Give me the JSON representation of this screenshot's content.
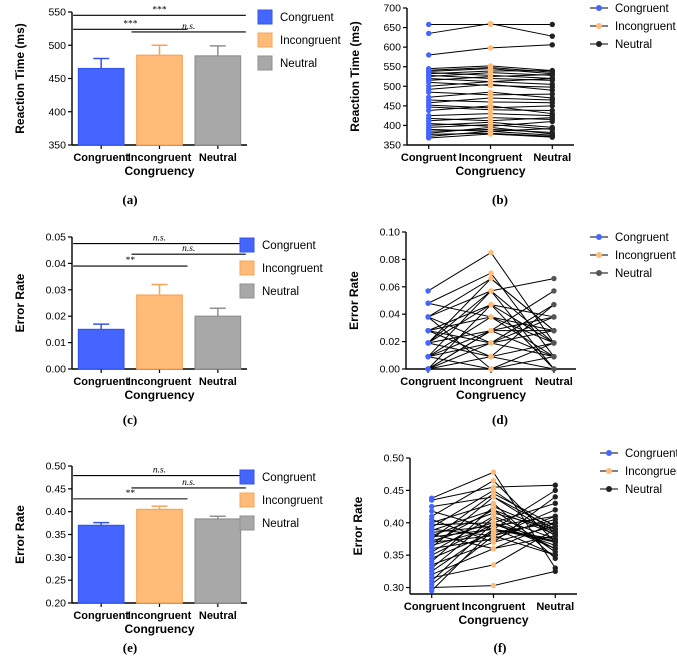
{
  "colors": {
    "congruent": "#4466ff",
    "incongruent": "#ffbb77",
    "neutral": "#a8a8a8",
    "congruent_edge": "#3355ee",
    "incongruent_edge": "#f5a55a",
    "neutral_edge": "#909090",
    "dot_neutral_dark": "#222222",
    "dot_neutral_grey": "#555555"
  },
  "chart_data": [
    {
      "id": "a",
      "type": "bar",
      "panel_label": "(a)",
      "categories": [
        "Congruent",
        "Incongruent",
        "Neutral"
      ],
      "values": [
        465,
        485,
        484
      ],
      "errors": [
        15,
        15,
        15
      ],
      "ylabel": "Reaction Time (ms)",
      "xlabel": "Congruency",
      "ylim": [
        350,
        550
      ],
      "yticks": [
        350,
        400,
        450,
        500,
        550
      ],
      "ytick_labels": [
        "350",
        "400",
        "450",
        "500",
        "550"
      ],
      "legend": [
        "Congruent",
        "Incongruent",
        "Neutral"
      ],
      "legend_position": "right",
      "significance": [
        {
          "from": 0,
          "to": 2,
          "y": 545,
          "text": "***",
          "italic": false
        },
        {
          "from": 0,
          "to": 1,
          "y": 524,
          "text": "***",
          "italic": false
        },
        {
          "from": 1,
          "to": 2,
          "y": 520,
          "text": "n.s.",
          "italic": true
        }
      ]
    },
    {
      "id": "b",
      "type": "line",
      "panel_label": "(b)",
      "categories": [
        "Congruent",
        "Incongruent",
        "Neutral"
      ],
      "ylabel": "Reaction Time (ms)",
      "xlabel": "Congruency",
      "ylim": [
        350,
        700
      ],
      "yticks": [
        350,
        400,
        450,
        500,
        550,
        600,
        650,
        700
      ],
      "ytick_labels": [
        "350",
        "400",
        "450",
        "500",
        "550",
        "600",
        "650",
        "700"
      ],
      "legend": [
        "Congruent",
        "Incongruent",
        "Neutral"
      ],
      "legend_position": "top-right",
      "neutral_dot_color": "dot_neutral_dark",
      "subjects": [
        [
          658,
          658,
          658
        ],
        [
          635,
          660,
          628
        ],
        [
          580,
          598,
          606
        ],
        [
          545,
          552,
          540
        ],
        [
          541,
          548,
          536
        ],
        [
          538,
          545,
          532
        ],
        [
          535,
          528,
          520
        ],
        [
          532,
          539,
          540
        ],
        [
          528,
          520,
          515
        ],
        [
          525,
          535,
          528
        ],
        [
          520,
          512,
          505
        ],
        [
          515,
          525,
          530
        ],
        [
          510,
          502,
          498
        ],
        [
          500,
          512,
          520
        ],
        [
          492,
          505,
          490
        ],
        [
          485,
          478,
          480
        ],
        [
          472,
          485,
          470
        ],
        [
          465,
          460,
          458
        ],
        [
          458,
          470,
          465
        ],
        [
          452,
          445,
          450
        ],
        [
          447,
          440,
          438
        ],
        [
          438,
          450,
          430
        ],
        [
          425,
          430,
          425
        ],
        [
          418,
          412,
          420
        ],
        [
          412,
          420,
          415
        ],
        [
          405,
          398,
          410
        ],
        [
          400,
          408,
          395
        ],
        [
          395,
          402,
          390
        ],
        [
          390,
          385,
          392
        ],
        [
          385,
          390,
          382
        ],
        [
          380,
          395,
          378
        ],
        [
          377,
          380,
          372
        ],
        [
          372,
          385,
          375
        ],
        [
          368,
          378,
          370
        ]
      ]
    },
    {
      "id": "c",
      "type": "bar",
      "panel_label": "(c)",
      "categories": [
        "Congruent",
        "Incongruent",
        "Neutral"
      ],
      "values": [
        0.015,
        0.028,
        0.02
      ],
      "errors": [
        0.002,
        0.004,
        0.003
      ],
      "ylabel": "Error Rate",
      "xlabel": "Congruency",
      "ylim": [
        0,
        0.05
      ],
      "yticks": [
        0,
        0.01,
        0.02,
        0.03,
        0.04,
        0.05
      ],
      "ytick_labels": [
        "0.00",
        "0.01",
        "0.02",
        "0.03",
        "0.04",
        "0.05"
      ],
      "legend": [
        "Congruent",
        "Incongruent",
        "Neutral"
      ],
      "legend_position": "right",
      "significance": [
        {
          "from": 0,
          "to": 2,
          "y": 0.0475,
          "text": "n.s.",
          "italic": true
        },
        {
          "from": 0,
          "to": 1,
          "y": 0.039,
          "text": "**",
          "italic": false
        },
        {
          "from": 1,
          "to": 2,
          "y": 0.0435,
          "text": "n.s.",
          "italic": true
        }
      ]
    },
    {
      "id": "d",
      "type": "line",
      "panel_label": "(d)",
      "categories": [
        "Congruent",
        "Incongruent",
        "Neutral"
      ],
      "ylabel": "Error Rate",
      "xlabel": "Congruency",
      "ylim": [
        0,
        0.1
      ],
      "yticks": [
        0,
        0.02,
        0.04,
        0.06,
        0.08,
        0.1
      ],
      "ytick_labels": [
        "0.00",
        "0.02",
        "0.04",
        "0.06",
        "0.08",
        "0.10"
      ],
      "legend": [
        "Congruent",
        "Incongruent",
        "Neutral"
      ],
      "legend_position": "top-right",
      "neutral_dot_color": "dot_neutral_grey",
      "subjects": [
        [
          0.057,
          0.085,
          0.019
        ],
        [
          0.048,
          0.07,
          0.009
        ],
        [
          0.038,
          0.066,
          0.028
        ],
        [
          0.038,
          0.057,
          0.066
        ],
        [
          0.038,
          0.019,
          0.047
        ],
        [
          0.028,
          0.047,
          0.038
        ],
        [
          0.028,
          0.019,
          0.028
        ],
        [
          0.028,
          0.038,
          0.009
        ],
        [
          0.019,
          0.057,
          0.019
        ],
        [
          0.019,
          0.028,
          0.038
        ],
        [
          0.019,
          0.009,
          0.019
        ],
        [
          0.019,
          0.047,
          0.0
        ],
        [
          0.009,
          0.038,
          0.028
        ],
        [
          0.009,
          0.019,
          0.009
        ],
        [
          0.009,
          0.028,
          0.057
        ],
        [
          0.009,
          0.0,
          0.019
        ],
        [
          0.0,
          0.028,
          0.009
        ],
        [
          0.0,
          0.019,
          0.038
        ],
        [
          0.0,
          0.009,
          0.0
        ],
        [
          0.0,
          0.047,
          0.019
        ],
        [
          0.038,
          0.0,
          0.009
        ],
        [
          0.028,
          0.009,
          0.047
        ],
        [
          0.019,
          0.066,
          0.028
        ],
        [
          0.009,
          0.057,
          0.0
        ],
        [
          0.048,
          0.038,
          0.019
        ],
        [
          0.0,
          0.028,
          0.028
        ]
      ]
    },
    {
      "id": "e",
      "type": "bar",
      "panel_label": "(e)",
      "categories": [
        "Congruent",
        "Incongruent",
        "Neutral"
      ],
      "values": [
        0.37,
        0.405,
        0.384
      ],
      "errors": [
        0.006,
        0.007,
        0.006
      ],
      "ylabel": "Error Rate",
      "xlabel": "Congruency",
      "ylim": [
        0.2,
        0.5
      ],
      "yticks": [
        0.2,
        0.25,
        0.3,
        0.35,
        0.4,
        0.45,
        0.5
      ],
      "ytick_labels": [
        "0.20",
        "0.25",
        "0.30",
        "0.35",
        "0.40",
        "0.45",
        "0.50"
      ],
      "legend": [
        "Congruent",
        "Incongruent",
        "Neutral"
      ],
      "legend_position": "right",
      "significance": [
        {
          "from": 0,
          "to": 2,
          "y": 0.479,
          "text": "n.s.",
          "italic": true
        },
        {
          "from": 0,
          "to": 1,
          "y": 0.428,
          "text": "**",
          "italic": false
        },
        {
          "from": 1,
          "to": 2,
          "y": 0.452,
          "text": "n.s.",
          "italic": true
        }
      ]
    },
    {
      "id": "f",
      "type": "line",
      "panel_label": "(f)",
      "categories": [
        "Congruent",
        "Incongruent",
        "Neutral"
      ],
      "ylabel": "Error Rate",
      "xlabel": "Congruency",
      "ylim": [
        0.29,
        0.5
      ],
      "yticks": [
        0.3,
        0.35,
        0.4,
        0.45,
        0.5
      ],
      "ytick_labels": [
        "0.30",
        "0.35",
        "0.40",
        "0.45",
        "0.50"
      ],
      "legend": [
        "Congruent",
        "Incongruent",
        "Neutral"
      ],
      "legend_position": "top-right",
      "neutral_dot_color": "dot_neutral_dark",
      "subjects": [
        [
          0.438,
          0.478,
          0.33
        ],
        [
          0.435,
          0.455,
          0.458
        ],
        [
          0.425,
          0.44,
          0.38
        ],
        [
          0.418,
          0.39,
          0.45
        ],
        [
          0.41,
          0.465,
          0.37
        ],
        [
          0.405,
          0.37,
          0.44
        ],
        [
          0.4,
          0.43,
          0.345
        ],
        [
          0.397,
          0.4,
          0.43
        ],
        [
          0.393,
          0.45,
          0.385
        ],
        [
          0.39,
          0.38,
          0.42
        ],
        [
          0.388,
          0.42,
          0.355
        ],
        [
          0.385,
          0.395,
          0.41
        ],
        [
          0.382,
          0.36,
          0.4
        ],
        [
          0.38,
          0.415,
          0.39
        ],
        [
          0.378,
          0.39,
          0.372
        ],
        [
          0.375,
          0.445,
          0.395
        ],
        [
          0.372,
          0.4,
          0.36
        ],
        [
          0.37,
          0.38,
          0.405
        ],
        [
          0.368,
          0.42,
          0.382
        ],
        [
          0.365,
          0.392,
          0.35
        ],
        [
          0.362,
          0.44,
          0.39
        ],
        [
          0.36,
          0.375,
          0.41
        ],
        [
          0.355,
          0.41,
          0.375
        ],
        [
          0.35,
          0.398,
          0.365
        ],
        [
          0.345,
          0.385,
          0.4
        ],
        [
          0.34,
          0.425,
          0.385
        ],
        [
          0.335,
          0.37,
          0.395
        ],
        [
          0.33,
          0.408,
          0.36
        ],
        [
          0.325,
          0.39,
          0.375
        ],
        [
          0.32,
          0.36,
          0.38
        ],
        [
          0.315,
          0.335,
          0.39
        ],
        [
          0.31,
          0.4,
          0.37
        ],
        [
          0.305,
          0.38,
          0.35
        ],
        [
          0.3,
          0.303,
          0.325
        ],
        [
          0.295,
          0.39,
          0.37
        ]
      ]
    }
  ]
}
